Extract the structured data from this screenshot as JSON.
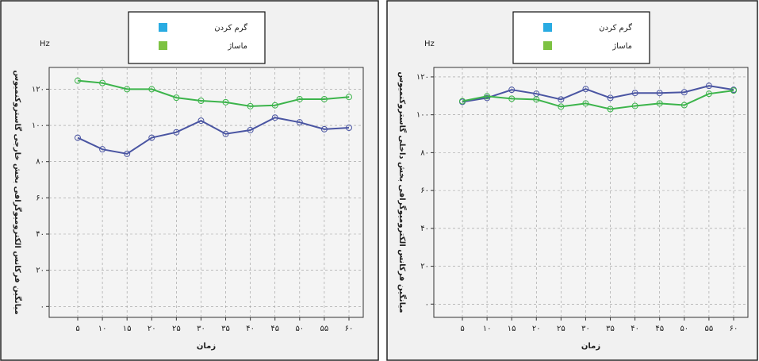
{
  "chart_data": [
    {
      "type": "line",
      "annotation": "Hz",
      "y_label": "میانگین فرکانس الکترومیوگرافی بخش خارجی گاستروکنمیوس",
      "x_label": "زمان",
      "categories": [
        "۵",
        "۱۰",
        "۱۵",
        "۲۰",
        "۲۵",
        "۳۰",
        "۳۵",
        "۴۰",
        "۴۵",
        "۵۰",
        "۵۵",
        "۶۰"
      ],
      "series": [
        {
          "name": "گرم کردن",
          "color": "#4a55a2",
          "legend_color": "#29abe2",
          "values": [
            93.2,
            86.8,
            84.3,
            93.2,
            96.2,
            102.6,
            95.3,
            97.4,
            104.3,
            101.7,
            97.9,
            98.7
          ]
        },
        {
          "name": "ماساژ",
          "color": "#3cb44b",
          "legend_color": "#7dc242",
          "values": [
            124.7,
            123.4,
            120,
            120,
            115.3,
            113.6,
            112.8,
            110.6,
            111.1,
            114.5,
            114.5,
            115.7
          ]
        }
      ],
      "ylim": [
        -6,
        132
      ],
      "yticks": [
        {
          "value": 0,
          "label": "۰"
        },
        {
          "value": 20,
          "label": "۲۰"
        },
        {
          "value": 40,
          "label": "۴۰"
        },
        {
          "value": 60,
          "label": "۶۰"
        },
        {
          "value": 80,
          "label": "۸۰"
        },
        {
          "value": 100,
          "label": "۱۰۰"
        },
        {
          "value": 120,
          "label": "۱۲۰"
        }
      ],
      "grid": true
    },
    {
      "type": "line",
      "annotation": "Hz",
      "y_label": "میانگین فرکانس الکترومیوگرافی بخش داخلی گاستروکنمیوس",
      "x_label": "زمان",
      "categories": [
        "۵",
        "۱۰",
        "۱۵",
        "۲۰",
        "۲۵",
        "۳۰",
        "۳۵",
        "۴۰",
        "۴۵",
        "۵۰",
        "۵۵",
        "۶۰"
      ],
      "series": [
        {
          "name": "گرم کردن",
          "color": "#4a55a2",
          "legend_color": "#29abe2",
          "values": [
            106.8,
            108.9,
            113.2,
            111.1,
            108.1,
            113.6,
            108.9,
            111.5,
            111.5,
            111.9,
            115.3,
            113.2
          ]
        },
        {
          "name": "ماساژ",
          "color": "#3cb44b",
          "legend_color": "#7dc242",
          "values": [
            107.2,
            109.8,
            108.5,
            108.1,
            104.3,
            106.0,
            103.0,
            104.7,
            106.0,
            105.1,
            111.1,
            112.8
          ]
        }
      ],
      "ylim": [
        -7,
        125
      ],
      "yticks": [
        {
          "value": 0,
          "label": "۰"
        },
        {
          "value": 20,
          "label": "۲۰"
        },
        {
          "value": 40,
          "label": "۴۰"
        },
        {
          "value": 60,
          "label": "۶۰"
        },
        {
          "value": 80,
          "label": "۸۰"
        },
        {
          "value": 100,
          "label": "۱۰۰"
        },
        {
          "value": 120,
          "label": "۱۲۰"
        }
      ],
      "grid": true
    }
  ]
}
